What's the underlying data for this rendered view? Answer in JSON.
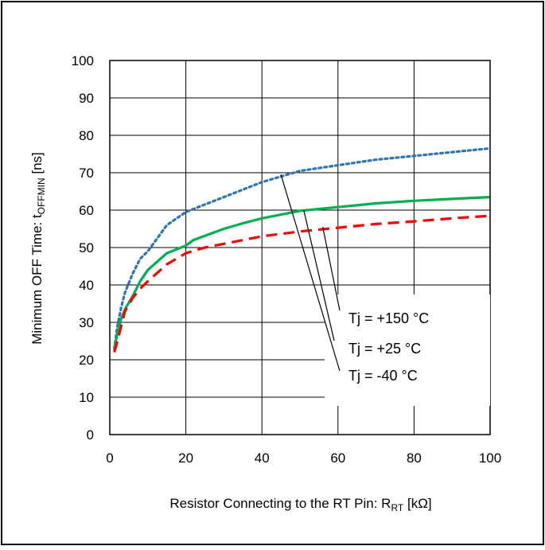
{
  "chart_data": {
    "type": "line",
    "title": "",
    "xlabel": {
      "main": "Resistor Connecting to the RT Pin: R",
      "sub": "RT",
      "tail": " [kΩ]"
    },
    "ylabel": {
      "main": "Minimum OFF Time: t",
      "sub": "OFFMIN",
      "tail": " [ns]"
    },
    "xlim": [
      0,
      100
    ],
    "ylim": [
      0,
      100
    ],
    "xticks": [
      "0",
      "20",
      "40",
      "60",
      "80",
      "100"
    ],
    "yticks": [
      "0",
      "10",
      "20",
      "30",
      "40",
      "50",
      "60",
      "70",
      "80",
      "90",
      "100"
    ],
    "grid": true,
    "series": [
      {
        "name": "Tj = +150 °C",
        "color": "#2e75b6",
        "style": "dotted",
        "x": [
          1.2,
          2,
          3,
          4,
          6,
          8,
          10,
          15,
          20,
          25,
          30,
          40,
          50,
          60,
          70,
          80,
          90,
          100
        ],
        "y": [
          23,
          29,
          34,
          38,
          43,
          47,
          49,
          56,
          59.5,
          61.5,
          63.5,
          67.5,
          70.5,
          72,
          73.5,
          74.5,
          75.5,
          76.5
        ]
      },
      {
        "name": "Tj = +25 °C",
        "color": "#00b050",
        "style": "solid",
        "x": [
          1.2,
          2,
          3,
          4,
          6,
          8,
          10,
          15,
          20,
          22,
          26,
          30,
          35,
          40,
          50,
          60,
          70,
          80,
          90,
          100
        ],
        "y": [
          23,
          27,
          31,
          33.5,
          37,
          41,
          44,
          48.5,
          50.5,
          52,
          53.5,
          55,
          56.5,
          57.8,
          59.8,
          60.8,
          61.8,
          62.5,
          63,
          63.5
        ]
      },
      {
        "name": "Tj = -40 °C",
        "color": "#ff0000",
        "style": "dashed",
        "x": [
          1.2,
          2,
          3,
          4,
          6,
          8,
          10,
          15,
          20,
          25,
          30,
          40,
          50,
          60,
          70,
          80,
          90,
          100
        ],
        "y": [
          22,
          25,
          29,
          33,
          36.5,
          39,
          41,
          45.5,
          48.5,
          50,
          51,
          53,
          54.3,
          55.3,
          56.3,
          57,
          57.8,
          58.5
        ]
      }
    ],
    "annotations": [
      {
        "text": "Tj = +150 °C",
        "pointer": {
          "x": 56,
          "y": 55.5
        }
      },
      {
        "text": "Tj = +25 °C",
        "pointer": {
          "x": 51,
          "y": 60
        }
      },
      {
        "text": "Tj = -40 °C",
        "pointer": {
          "x": 45,
          "y": 69.5
        }
      }
    ]
  }
}
